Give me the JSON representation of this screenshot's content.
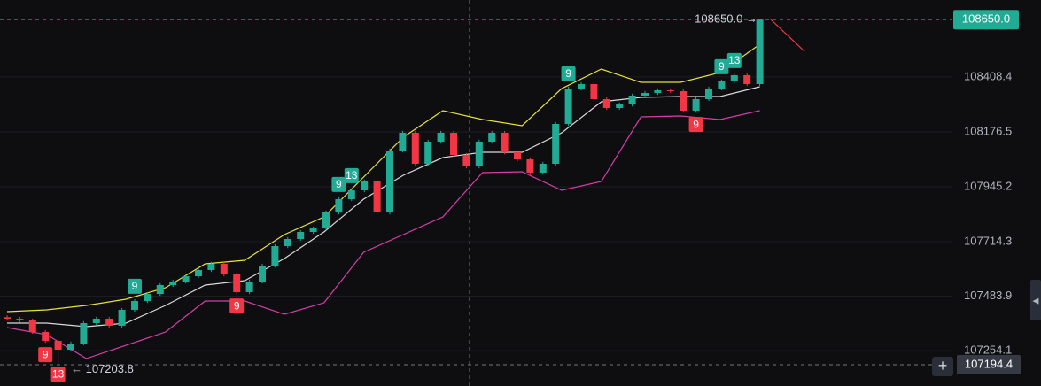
{
  "chart_data": {
    "type": "candlestick",
    "ylim": [
      107105,
      108733
    ],
    "yticks": [
      108408.4,
      108176.5,
      107945.2,
      107714.3,
      107483.9,
      107254.1
    ],
    "grid": true,
    "up_color": "#22ab94",
    "down_color": "#f23645",
    "open": [
      107395.0,
      107388.8,
      107381.3,
      107332.7,
      107295.4,
      107258.1,
      107284.2,
      107370.1,
      107388.8,
      107358.9,
      107426.1,
      107463.4,
      107493.3,
      107530.7,
      107545.6,
      107568.0,
      107594.1,
      107620.3,
      107575.5,
      107500.8,
      107545.6,
      107612.8,
      107694.9,
      107724.8,
      107754.7,
      107769.6,
      107836.8,
      107892.8,
      107930.2,
      107967.5,
      107836.8,
      108098.2,
      108172.9,
      108042.2,
      108135.6,
      108172.9,
      108079.5,
      108031.0,
      108135.6,
      108172.9,
      108090.8,
      108060.9,
      108004.9,
      108042.2,
      108210.2,
      108359.6,
      108378.3,
      108314.8,
      108277.5,
      108292.4,
      108329.7,
      108340.9,
      108352.1,
      108348.4,
      108266.2,
      108314.8,
      108359.6,
      108389.5,
      108415.6,
      108378.3
    ],
    "high": [
      107403.0,
      107396.8,
      107389.3,
      107340.7,
      107303.4,
      107292.2,
      107378.1,
      107396.8,
      107396.8,
      107434.1,
      107471.4,
      107501.3,
      107538.7,
      107553.6,
      107576.0,
      107602.1,
      107628.3,
      107628.3,
      107583.5,
      107553.6,
      107620.8,
      107702.9,
      107732.8,
      107762.7,
      107777.6,
      107844.8,
      107900.8,
      107938.2,
      107975.5,
      107975.5,
      108106.2,
      108180.9,
      108180.9,
      108143.6,
      108180.9,
      108180.9,
      108087.5,
      108143.6,
      108180.9,
      108180.9,
      108098.8,
      108068.9,
      108050.2,
      108218.2,
      108367.6,
      108386.3,
      108386.3,
      108322.8,
      108300.4,
      108337.7,
      108348.9,
      108360.1,
      108360.1,
      108356.4,
      108322.8,
      108367.6,
      108397.5,
      108423.6,
      108423.6,
      108650.0
    ],
    "low": [
      107380.8,
      107373.3,
      107324.7,
      107287.4,
      107203.8,
      107250.1,
      107276.2,
      107362.1,
      107350.9,
      107350.9,
      107418.1,
      107455.4,
      107485.3,
      107522.7,
      107537.6,
      107560.0,
      107586.1,
      107567.5,
      107492.8,
      107492.8,
      107537.6,
      107604.8,
      107686.9,
      107716.8,
      107746.7,
      107761.6,
      107828.8,
      107884.8,
      107922.2,
      107828.8,
      107828.8,
      108090.2,
      108034.2,
      108034.2,
      108127.6,
      108071.5,
      108023.0,
      108023.0,
      108127.6,
      108082.8,
      108052.9,
      107996.9,
      107996.9,
      108034.2,
      108202.2,
      108351.6,
      108306.8,
      108269.5,
      108269.5,
      108284.4,
      108321.7,
      108332.9,
      108340.4,
      108258.2,
      108258.2,
      108306.8,
      108351.6,
      108381.5,
      108370.3,
      108370.3
    ],
    "close": [
      107388.8,
      107381.3,
      107332.7,
      107295.4,
      107258.1,
      107284.2,
      107370.1,
      107388.8,
      107358.9,
      107426.1,
      107463.4,
      107493.3,
      107530.7,
      107545.6,
      107568.0,
      107594.1,
      107620.3,
      107575.5,
      107500.8,
      107545.6,
      107612.8,
      107694.9,
      107724.8,
      107754.7,
      107769.6,
      107836.8,
      107892.8,
      107930.2,
      107967.5,
      107836.8,
      108098.2,
      108172.9,
      108042.2,
      108135.6,
      108172.9,
      108079.5,
      108031.0,
      108135.6,
      108172.9,
      108090.8,
      108060.9,
      108004.9,
      108042.2,
      108210.2,
      108359.6,
      108378.3,
      108314.8,
      108277.5,
      108292.4,
      108329.7,
      108340.9,
      108352.1,
      108348.4,
      108266.2,
      108314.8,
      108359.6,
      108389.5,
      108415.6,
      108378.3,
      108650.0
    ],
    "td_up": [
      null,
      null,
      null,
      null,
      null,
      null,
      null,
      null,
      null,
      null,
      "9",
      null,
      null,
      null,
      null,
      null,
      null,
      null,
      null,
      null,
      null,
      null,
      null,
      null,
      null,
      null,
      "9",
      "13",
      null,
      null,
      null,
      null,
      null,
      null,
      null,
      null,
      null,
      null,
      null,
      null,
      null,
      null,
      null,
      null,
      "9",
      null,
      null,
      null,
      null,
      null,
      null,
      null,
      null,
      null,
      null,
      null,
      "9",
      "13",
      null,
      null
    ],
    "td_down": [
      null,
      null,
      null,
      "9",
      "13",
      null,
      null,
      null,
      null,
      null,
      null,
      null,
      null,
      null,
      null,
      null,
      null,
      null,
      "9",
      null,
      null,
      null,
      null,
      null,
      null,
      null,
      null,
      null,
      null,
      null,
      null,
      null,
      null,
      null,
      null,
      null,
      null,
      null,
      null,
      null,
      null,
      null,
      null,
      null,
      null,
      null,
      null,
      null,
      null,
      null,
      null,
      null,
      null,
      null,
      "9",
      null,
      null,
      null,
      null,
      null
    ],
    "bands": [
      {
        "color": "#e8e23a",
        "values": [
          107418.6,
          107426.1,
          107444.8,
          107470.9,
          107519.5,
          107620.3,
          107635.2,
          107743.5,
          107818.2,
          107986.2,
          108154.2,
          108266.3,
          108228.9,
          108202.8,
          108359.6,
          108441.7,
          108385.7,
          108385.7,
          108426.8,
          108546.3
        ]
      },
      {
        "color": "#d9d9d9",
        "values": [
          107370.1,
          107370.1,
          107355.2,
          107370.1,
          107444.8,
          107530.7,
          107549.3,
          107642.7,
          107754.7,
          107892.9,
          107993.7,
          108068.3,
          108090.8,
          108090.8,
          108172.9,
          108303.6,
          108322.3,
          108326.0,
          108326.0,
          108367.1
        ]
      },
      {
        "color": "#d63fa8",
        "values": [
          107351.4,
          107321.5,
          107220.7,
          107276.7,
          107332.7,
          107463.4,
          107463.4,
          107407.4,
          107455.9,
          107668.8,
          107743.5,
          107818.2,
          108004.9,
          108008.6,
          107930.2,
          107967.5,
          108240.1,
          108243.8,
          108228.9,
          108266.3
        ]
      }
    ],
    "last_price": {
      "value": 108650,
      "label": "108650.0"
    },
    "high_marker": {
      "value": 108650,
      "label": "108650.0 →"
    },
    "low_marker": {
      "value": 107203.8,
      "label": "← 107203.8"
    },
    "crosshair_price": 107194.4
  }
}
